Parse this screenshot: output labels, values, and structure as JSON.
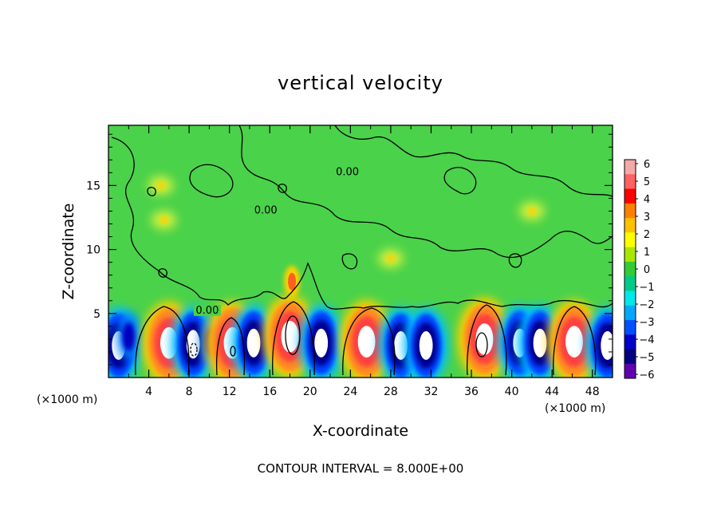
{
  "chart_data": {
    "type": "heatmap",
    "title": "vertical velocity",
    "xlabel": "X-coordinate",
    "ylabel": "Z-coordinate",
    "x_unit": "(×1000 m)",
    "y_unit": "(×1000 m)",
    "xlim": [
      0,
      50
    ],
    "ylim": [
      0,
      19.7
    ],
    "x_ticks": [
      4,
      8,
      12,
      16,
      20,
      24,
      28,
      32,
      36,
      40,
      44,
      48
    ],
    "y_ticks": [
      5,
      10,
      15
    ],
    "colorbar": {
      "min": -6,
      "max": 6,
      "ticks": [
        6,
        5,
        4,
        3,
        2,
        1,
        0,
        -1,
        -2,
        -3,
        -4,
        -5,
        -6
      ],
      "colors": [
        "#f4a8a8",
        "#ff6060",
        "#ff0000",
        "#ff8000",
        "#ffc000",
        "#ffff00",
        "#a8e800",
        "#33cc33",
        "#00cc88",
        "#00e8e8",
        "#00a8ff",
        "#0050ff",
        "#0000c8",
        "#000080",
        "#6000b0"
      ]
    },
    "contour_interval_text": "CONTOUR INTERVAL = 8.000E+00",
    "contour_labels": [
      {
        "text": "0.00",
        "x": 23.7,
        "z": 15.8
      },
      {
        "text": "0.00",
        "x": 15.6,
        "z": 12.8
      },
      {
        "text": "0.00",
        "x": 9.8,
        "z": 5.0
      }
    ],
    "cells": [
      {
        "x": 1.0,
        "z": 2.5,
        "value": -5
      },
      {
        "x": 2.0,
        "z": 3.2,
        "value": -4
      },
      {
        "x": 6.0,
        "z": 2.7,
        "value": 6
      },
      {
        "x": 8.4,
        "z": 2.6,
        "value": -5
      },
      {
        "x": 10.2,
        "z": 2.8,
        "value": -3
      },
      {
        "x": 12.3,
        "z": 2.7,
        "value": 6
      },
      {
        "x": 14.4,
        "z": 2.7,
        "value": -5
      },
      {
        "x": 18.0,
        "z": 3.2,
        "value": 6
      },
      {
        "x": 18.2,
        "z": 7.5,
        "value": 4
      },
      {
        "x": 21.1,
        "z": 2.7,
        "value": -5
      },
      {
        "x": 25.6,
        "z": 2.8,
        "value": 6
      },
      {
        "x": 29.0,
        "z": 2.5,
        "value": -5
      },
      {
        "x": 31.5,
        "z": 2.5,
        "value": -5
      },
      {
        "x": 37.3,
        "z": 3.0,
        "value": 6
      },
      {
        "x": 40.8,
        "z": 2.7,
        "value": -5
      },
      {
        "x": 42.8,
        "z": 2.7,
        "value": -5
      },
      {
        "x": 46.2,
        "z": 2.8,
        "value": 6
      },
      {
        "x": 49.5,
        "z": 2.5,
        "value": -5
      },
      {
        "x": 5.5,
        "z": 12.3,
        "value": 1
      },
      {
        "x": 28.0,
        "z": 9.3,
        "value": 2
      },
      {
        "x": 5.2,
        "z": 15.0,
        "value": 1
      },
      {
        "x": 42.0,
        "z": 13.0,
        "value": 1
      }
    ]
  }
}
